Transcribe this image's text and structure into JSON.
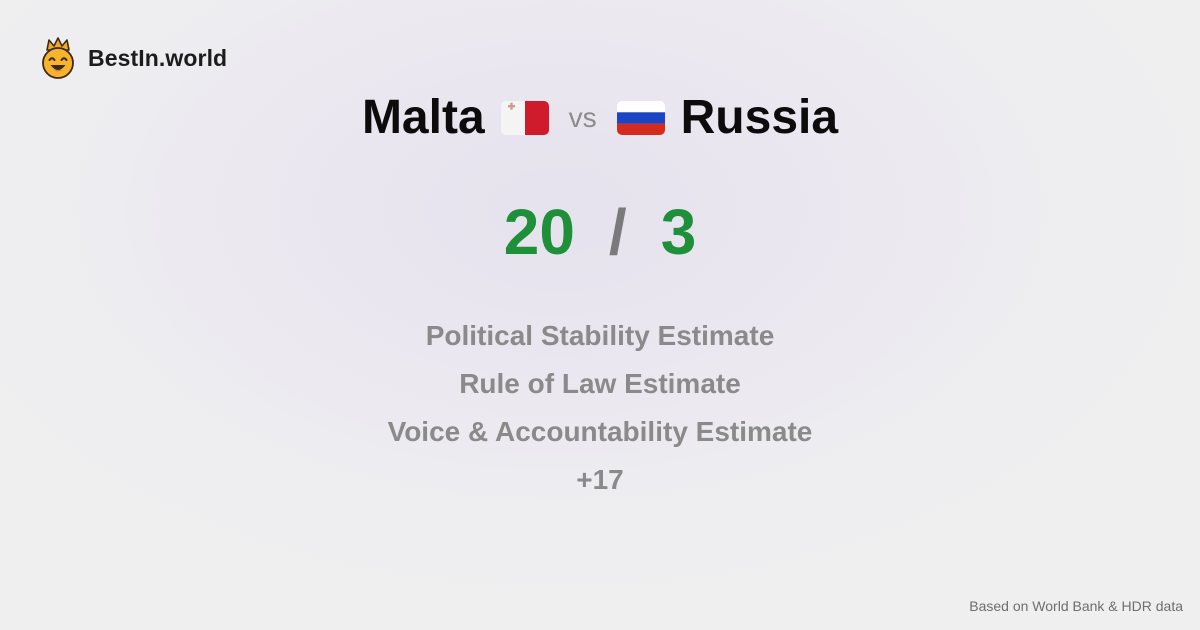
{
  "brand": {
    "name": "BestIn.world",
    "logo_icon": "crowned-smiley-icon"
  },
  "comparison": {
    "left_country": "Malta",
    "left_flag_icon": "malta-flag-icon",
    "vs_label": "vs",
    "right_country": "Russia",
    "right_flag_icon": "russia-flag-icon"
  },
  "score": {
    "left": "20",
    "separator": "/",
    "right": "3",
    "color": "#1f8f3a"
  },
  "metrics": [
    "Political Stability Estimate",
    "Rule of Law Estimate",
    "Voice & Accountability Estimate",
    "+17"
  ],
  "footer": {
    "source": "Based on World Bank & HDR data"
  },
  "colors": {
    "malta_white": "#f4f4f4",
    "malta_red": "#cf1b2b",
    "russia_white": "#ffffff",
    "russia_blue": "#1c45c4",
    "russia_red": "#d52b1e"
  }
}
